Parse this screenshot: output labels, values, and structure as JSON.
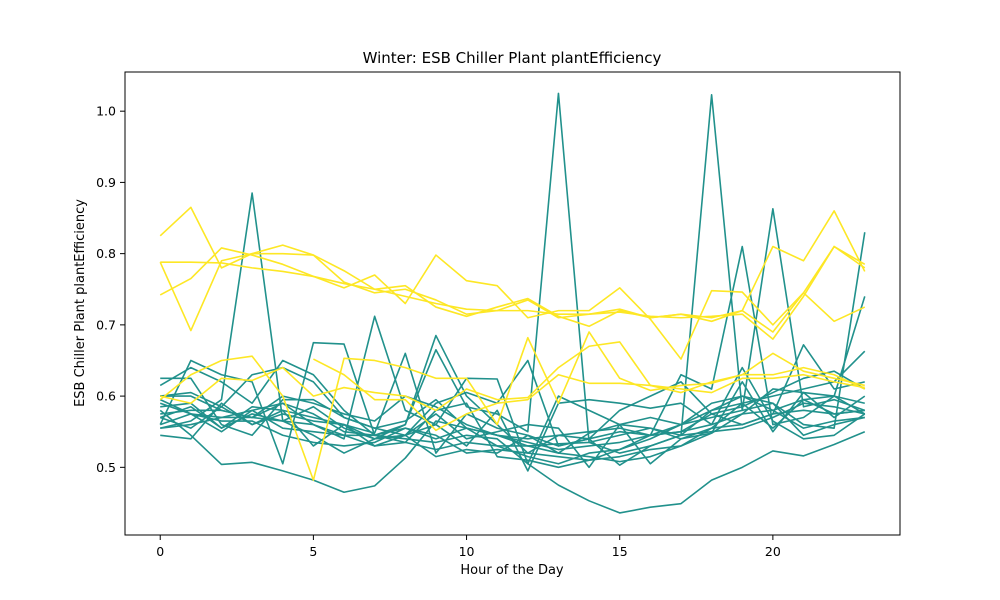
{
  "chart_data": {
    "type": "line",
    "title": "Winter: ESB Chiller Plant plantEfficiency",
    "xlabel": "Hour of the Day",
    "ylabel": "ESB Chiller Plant plantEfficiency",
    "xlim": [
      -1.15,
      24.15
    ],
    "ylim": [
      0.405,
      1.055
    ],
    "xticks": [
      0,
      5,
      10,
      15,
      20
    ],
    "yticks": [
      0.5,
      0.6,
      0.7,
      0.8,
      0.9,
      1.0
    ],
    "ytick_labels": [
      "0.5",
      "0.6",
      "0.7",
      "0.8",
      "0.9",
      "1.0"
    ],
    "grid": false,
    "colors": {
      "teal": "#21918c",
      "yellow": "#fde725"
    },
    "x": [
      0,
      1,
      2,
      3,
      4,
      5,
      6,
      7,
      8,
      9,
      10,
      11,
      12,
      13,
      14,
      15,
      16,
      17,
      18,
      19,
      20,
      21,
      22,
      23
    ],
    "series": [
      {
        "color": "teal",
        "values": [
          0.555,
          0.565,
          0.595,
          0.885,
          0.565,
          0.585,
          0.555,
          0.54,
          0.56,
          0.665,
          0.585,
          0.575,
          0.55,
          1.025,
          0.535,
          0.52,
          0.53,
          0.545,
          1.023,
          0.58,
          0.59,
          0.56,
          0.555,
          0.83
        ]
      },
      {
        "color": "teal",
        "values": [
          0.56,
          0.65,
          0.63,
          0.62,
          0.505,
          0.675,
          0.673,
          0.545,
          0.56,
          0.685,
          0.6,
          0.56,
          0.52,
          0.545,
          0.54,
          0.55,
          0.545,
          0.63,
          0.61,
          0.81,
          0.56,
          0.57,
          0.6,
          0.74
        ]
      },
      {
        "color": "teal",
        "values": [
          0.59,
          0.575,
          0.55,
          0.58,
          0.59,
          0.56,
          0.54,
          0.712,
          0.58,
          0.56,
          0.625,
          0.624,
          0.505,
          0.6,
          0.58,
          0.56,
          0.57,
          0.56,
          0.57,
          0.58,
          0.863,
          0.585,
          0.595,
          0.58
        ]
      },
      {
        "color": "teal",
        "values": [
          0.625,
          0.625,
          0.56,
          0.545,
          0.595,
          0.595,
          0.57,
          0.555,
          0.545,
          0.59,
          0.605,
          0.59,
          0.65,
          0.53,
          0.54,
          0.58,
          0.6,
          0.62,
          0.575,
          0.56,
          0.575,
          0.672,
          0.61,
          0.62
        ]
      },
      {
        "color": "teal",
        "values": [
          0.58,
          0.545,
          0.504,
          0.507,
          0.495,
          0.482,
          0.465,
          0.474,
          0.513,
          0.565,
          0.555,
          0.545,
          0.53,
          0.533,
          0.535,
          0.545,
          0.555,
          0.545,
          0.55,
          0.555,
          0.57,
          0.59,
          0.585,
          0.575
        ]
      },
      {
        "color": "teal",
        "values": [
          0.575,
          0.58,
          0.58,
          0.57,
          0.59,
          0.575,
          0.55,
          0.545,
          0.54,
          0.535,
          0.545,
          0.54,
          0.505,
          0.475,
          0.453,
          0.436,
          0.444,
          0.449,
          0.482,
          0.5,
          0.523,
          0.516,
          0.532,
          0.55
        ]
      },
      {
        "color": "teal",
        "values": [
          0.6,
          0.605,
          0.585,
          0.63,
          0.64,
          0.62,
          0.57,
          0.555,
          0.565,
          0.595,
          0.555,
          0.53,
          0.515,
          0.505,
          0.52,
          0.525,
          0.545,
          0.56,
          0.58,
          0.59,
          0.6,
          0.61,
          0.62,
          0.663
        ]
      },
      {
        "color": "teal",
        "values": [
          0.545,
          0.54,
          0.59,
          0.56,
          0.58,
          0.53,
          0.56,
          0.548,
          0.66,
          0.52,
          0.575,
          0.555,
          0.545,
          0.52,
          0.515,
          0.508,
          0.515,
          0.53,
          0.548,
          0.575,
          0.61,
          0.605,
          0.6,
          0.575
        ]
      },
      {
        "color": "teal",
        "values": [
          0.6,
          0.6,
          0.58,
          0.57,
          0.6,
          0.59,
          0.575,
          0.565,
          0.6,
          0.585,
          0.56,
          0.545,
          0.535,
          0.525,
          0.53,
          0.535,
          0.545,
          0.55,
          0.575,
          0.585,
          0.605,
          0.625,
          0.635,
          0.61
        ]
      },
      {
        "color": "teal",
        "values": [
          0.615,
          0.64,
          0.62,
          0.59,
          0.65,
          0.63,
          0.58,
          0.545,
          0.535,
          0.58,
          0.59,
          0.515,
          0.51,
          0.5,
          0.51,
          0.525,
          0.54,
          0.56,
          0.59,
          0.6,
          0.58,
          0.555,
          0.565,
          0.57
        ]
      },
      {
        "color": "teal",
        "values": [
          0.555,
          0.56,
          0.57,
          0.57,
          0.565,
          0.56,
          0.545,
          0.53,
          0.535,
          0.525,
          0.535,
          0.53,
          0.53,
          0.52,
          0.548,
          0.56,
          0.555,
          0.54,
          0.555,
          0.59,
          0.555,
          0.595,
          0.6,
          0.59
        ]
      },
      {
        "color": "teal",
        "values": [
          0.57,
          0.585,
          0.555,
          0.585,
          0.58,
          0.57,
          0.56,
          0.54,
          0.545,
          0.56,
          0.53,
          0.58,
          0.495,
          0.59,
          0.595,
          0.59,
          0.583,
          0.59,
          0.56,
          0.64,
          0.565,
          0.54,
          0.545,
          0.575
        ]
      },
      {
        "color": "teal",
        "values": [
          0.56,
          0.575,
          0.565,
          0.565,
          0.545,
          0.535,
          0.53,
          0.535,
          0.555,
          0.54,
          0.555,
          0.545,
          0.54,
          0.545,
          0.55,
          0.555,
          0.545,
          0.55,
          0.56,
          0.575,
          0.58,
          0.595,
          0.575,
          0.58
        ]
      },
      {
        "color": "teal",
        "values": [
          0.585,
          0.59,
          0.555,
          0.575,
          0.565,
          0.545,
          0.52,
          0.54,
          0.545,
          0.575,
          0.54,
          0.55,
          0.56,
          0.555,
          0.5,
          0.56,
          0.505,
          0.54,
          0.548,
          0.62,
          0.55,
          0.605,
          0.57,
          0.6
        ]
      },
      {
        "color": "teal",
        "values": [
          0.57,
          0.555,
          0.585,
          0.56,
          0.575,
          0.565,
          0.56,
          0.53,
          0.545,
          0.515,
          0.525,
          0.52,
          0.545,
          0.53,
          0.54,
          0.503,
          0.53,
          0.545,
          0.58,
          0.6,
          0.59,
          0.545,
          0.56,
          0.57
        ]
      },
      {
        "color": "teal",
        "values": [
          0.595,
          0.575,
          0.57,
          0.58,
          0.555,
          0.55,
          0.545,
          0.545,
          0.555,
          0.545,
          0.52,
          0.525,
          0.52,
          0.515,
          0.51,
          0.515,
          0.525,
          0.53,
          0.555,
          0.56,
          0.575,
          0.58,
          0.575,
          0.58
        ]
      },
      {
        "color": "yellow",
        "values": [
          0.825,
          0.865,
          0.78,
          0.8,
          0.812,
          0.798,
          0.776,
          0.75,
          0.755,
          0.725,
          0.712,
          0.725,
          0.737,
          0.712,
          0.698,
          0.72,
          0.71,
          0.715,
          0.705,
          0.72,
          0.81,
          0.79,
          0.86,
          0.775
        ]
      },
      {
        "color": "yellow",
        "values": [
          0.788,
          0.692,
          0.79,
          0.8,
          0.8,
          0.798,
          0.76,
          0.745,
          0.75,
          0.735,
          0.715,
          0.72,
          0.735,
          0.71,
          0.715,
          0.722,
          0.71,
          0.715,
          0.71,
          0.72,
          0.69,
          0.745,
          0.81,
          0.785
        ]
      },
      {
        "color": "yellow",
        "values": [
          0.788,
          0.788,
          0.787,
          0.78,
          0.775,
          0.768,
          0.758,
          0.75,
          0.74,
          0.73,
          0.722,
          0.72,
          0.72,
          0.715,
          0.715,
          0.718,
          0.712,
          0.71,
          0.712,
          0.715,
          0.68,
          0.74,
          0.81,
          0.78
        ]
      },
      {
        "color": "yellow",
        "values": [
          0.742,
          0.765,
          0.808,
          0.798,
          0.785,
          0.768,
          0.752,
          0.77,
          0.73,
          0.798,
          0.762,
          0.755,
          0.71,
          0.72,
          0.72,
          0.752,
          0.708,
          0.652,
          0.748,
          0.746,
          0.7,
          0.745,
          0.705,
          0.725
        ]
      },
      {
        "color": "yellow",
        "values": [
          0.6,
          0.59,
          0.625,
          0.622,
          0.64,
          0.6,
          0.612,
          0.605,
          0.6,
          0.58,
          0.61,
          0.595,
          0.598,
          0.64,
          0.67,
          0.676,
          0.615,
          0.605,
          0.62,
          0.63,
          0.66,
          0.635,
          0.625,
          0.615
        ]
      },
      {
        "color": "yellow",
        "values": [
          0.595,
          0.63,
          0.65,
          0.656,
          0.6,
          0.482,
          0.653,
          0.65,
          0.64,
          0.625,
          0.625,
          0.56,
          0.682,
          0.59,
          0.69,
          0.625,
          0.608,
          0.615,
          0.618,
          0.63,
          0.63,
          0.64,
          0.63,
          0.61
        ]
      },
      {
        "color": "yellow",
        "values": [
          null,
          null,
          null,
          null,
          null,
          0.652,
          0.63,
          0.595,
          0.595,
          0.552,
          0.575,
          0.59,
          0.595,
          0.63,
          0.618,
          0.618,
          0.615,
          0.61,
          0.605,
          0.625,
          0.625,
          0.63,
          0.62,
          0.612
        ]
      }
    ]
  }
}
